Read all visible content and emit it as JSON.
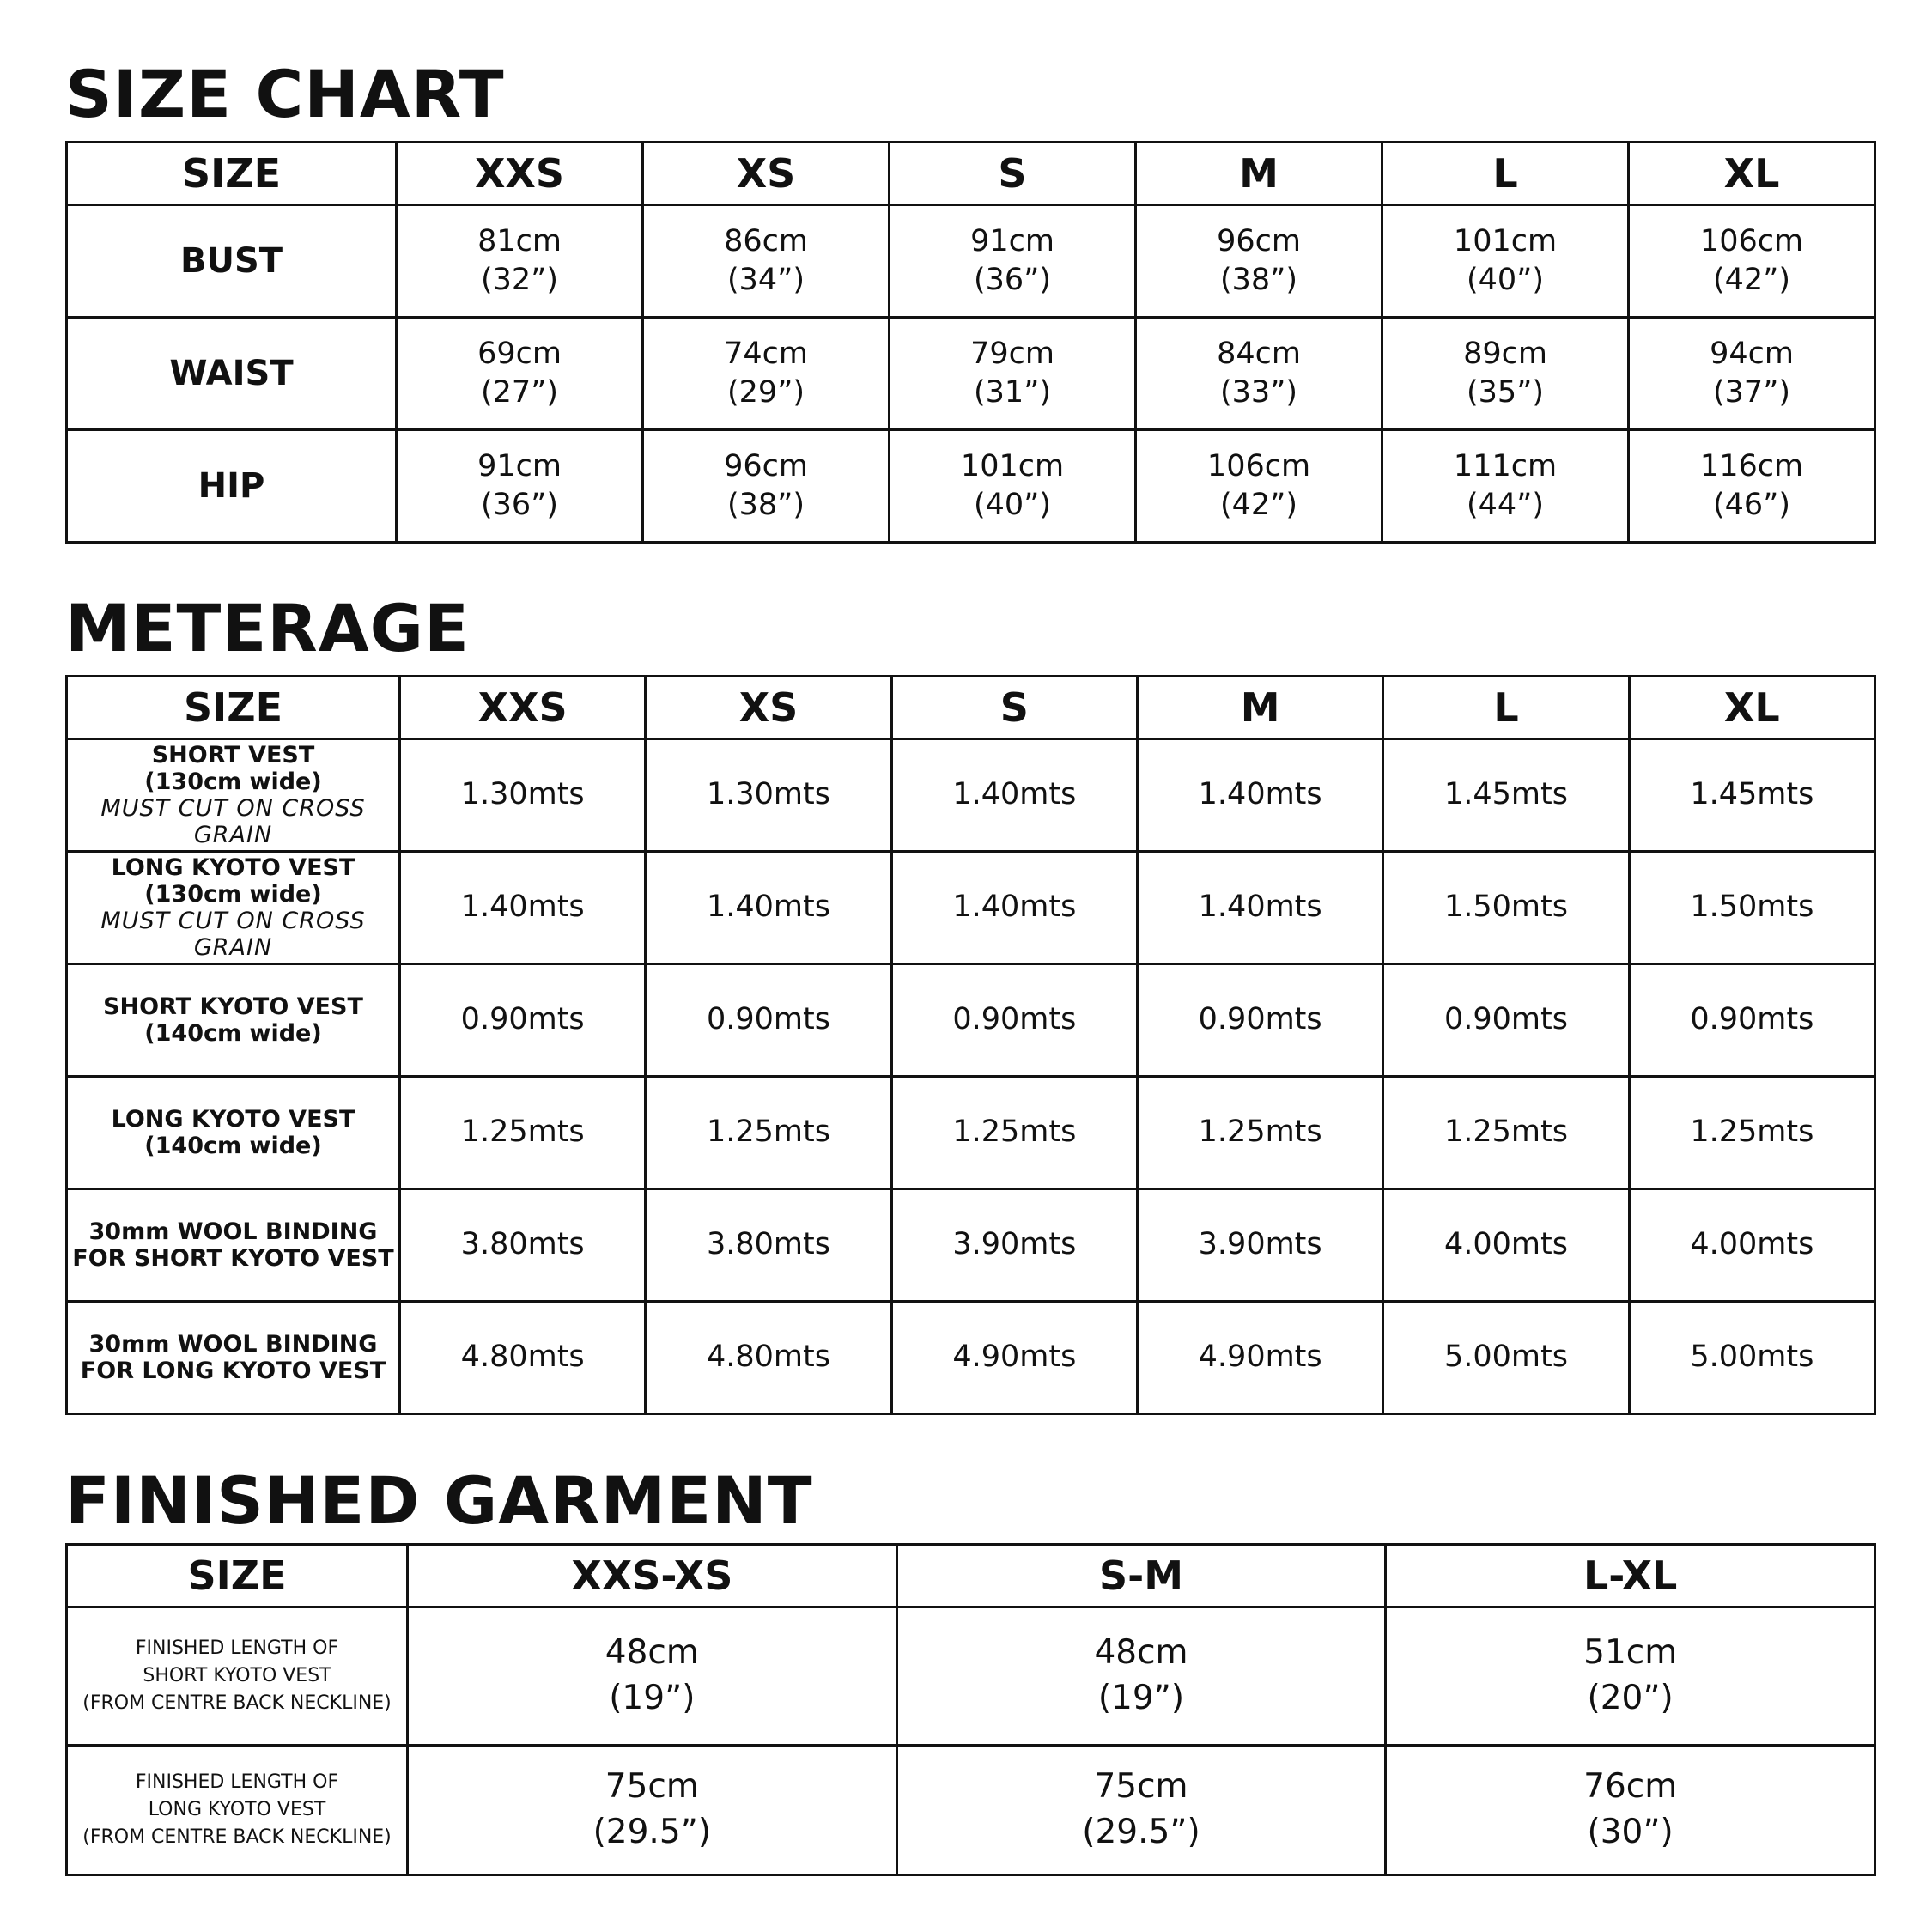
{
  "size_chart": {
    "title": "SIZE CHART",
    "header": [
      "SIZE",
      "XXS",
      "XS",
      "S",
      "M",
      "L",
      "XL"
    ],
    "rows": [
      {
        "label": "BUST",
        "values": [
          [
            "81cm",
            "(32”)"
          ],
          [
            "86cm",
            "(34”)"
          ],
          [
            "91cm",
            "(36”)"
          ],
          [
            "96cm",
            "(38”)"
          ],
          [
            "101cm",
            "(40”)"
          ],
          [
            "106cm",
            "(42”)"
          ]
        ]
      },
      {
        "label": "WAIST",
        "values": [
          [
            "69cm",
            "(27”)"
          ],
          [
            "74cm",
            "(29”)"
          ],
          [
            "79cm",
            "(31”)"
          ],
          [
            "84cm",
            "(33”)"
          ],
          [
            "89cm",
            "(35”)"
          ],
          [
            "94cm",
            "(37”)"
          ]
        ]
      },
      {
        "label": "HIP",
        "values": [
          [
            "91cm",
            "(36”)"
          ],
          [
            "96cm",
            "(38”)"
          ],
          [
            "101cm",
            "(40”)"
          ],
          [
            "106cm",
            "(42”)"
          ],
          [
            "111cm",
            "(44”)"
          ],
          [
            "116cm",
            "(46”)"
          ]
        ]
      }
    ]
  },
  "meterage": {
    "title": "METERAGE",
    "header": [
      "SIZE",
      "XXS",
      "XS",
      "S",
      "M",
      "L",
      "XL"
    ],
    "rows": [
      {
        "label": [
          "SHORT VEST",
          "(130cm wide)"
        ],
        "note": "MUST CUT ON CROSS GRAIN",
        "values": [
          "1.30mts",
          "1.30mts",
          "1.40mts",
          "1.40mts",
          "1.45mts",
          "1.45mts"
        ]
      },
      {
        "label": [
          "LONG KYOTO VEST",
          "(130cm wide)"
        ],
        "note": "MUST CUT ON CROSS GRAIN",
        "values": [
          "1.40mts",
          "1.40mts",
          "1.40mts",
          "1.40mts",
          "1.50mts",
          "1.50mts"
        ]
      },
      {
        "label": [
          "SHORT KYOTO VEST",
          "(140cm wide)"
        ],
        "values": [
          "0.90mts",
          "0.90mts",
          "0.90mts",
          "0.90mts",
          "0.90mts",
          "0.90mts"
        ]
      },
      {
        "label": [
          "LONG KYOTO VEST",
          "(140cm wide)"
        ],
        "values": [
          "1.25mts",
          "1.25mts",
          "1.25mts",
          "1.25mts",
          "1.25mts",
          "1.25mts"
        ]
      },
      {
        "label": [
          "30mm WOOL BINDING",
          "FOR SHORT KYOTO VEST"
        ],
        "values": [
          "3.80mts",
          "3.80mts",
          "3.90mts",
          "3.90mts",
          "4.00mts",
          "4.00mts"
        ]
      },
      {
        "label": [
          "30mm WOOL BINDING",
          "FOR LONG KYOTO VEST"
        ],
        "values": [
          "4.80mts",
          "4.80mts",
          "4.90mts",
          "4.90mts",
          "5.00mts",
          "5.00mts"
        ]
      }
    ]
  },
  "finished_garment": {
    "title": "FINISHED GARMENT",
    "header": [
      "SIZE",
      "XXS-XS",
      "S-M",
      "L-XL"
    ],
    "rows": [
      {
        "label": [
          "FINISHED LENGTH OF",
          "SHORT KYOTO VEST",
          "(FROM CENTRE BACK NECKLINE)"
        ],
        "values": [
          [
            "48cm",
            "(19”)"
          ],
          [
            "48cm",
            "(19”)"
          ],
          [
            "51cm",
            "(20”)"
          ]
        ]
      },
      {
        "label": [
          "FINISHED LENGTH OF",
          "LONG KYOTO VEST",
          "(FROM CENTRE BACK NECKLINE)"
        ],
        "values": [
          [
            "75cm",
            "(29.5”)"
          ],
          [
            "75cm",
            "(29.5”)"
          ],
          [
            "76cm",
            "(30”)"
          ]
        ]
      }
    ]
  }
}
